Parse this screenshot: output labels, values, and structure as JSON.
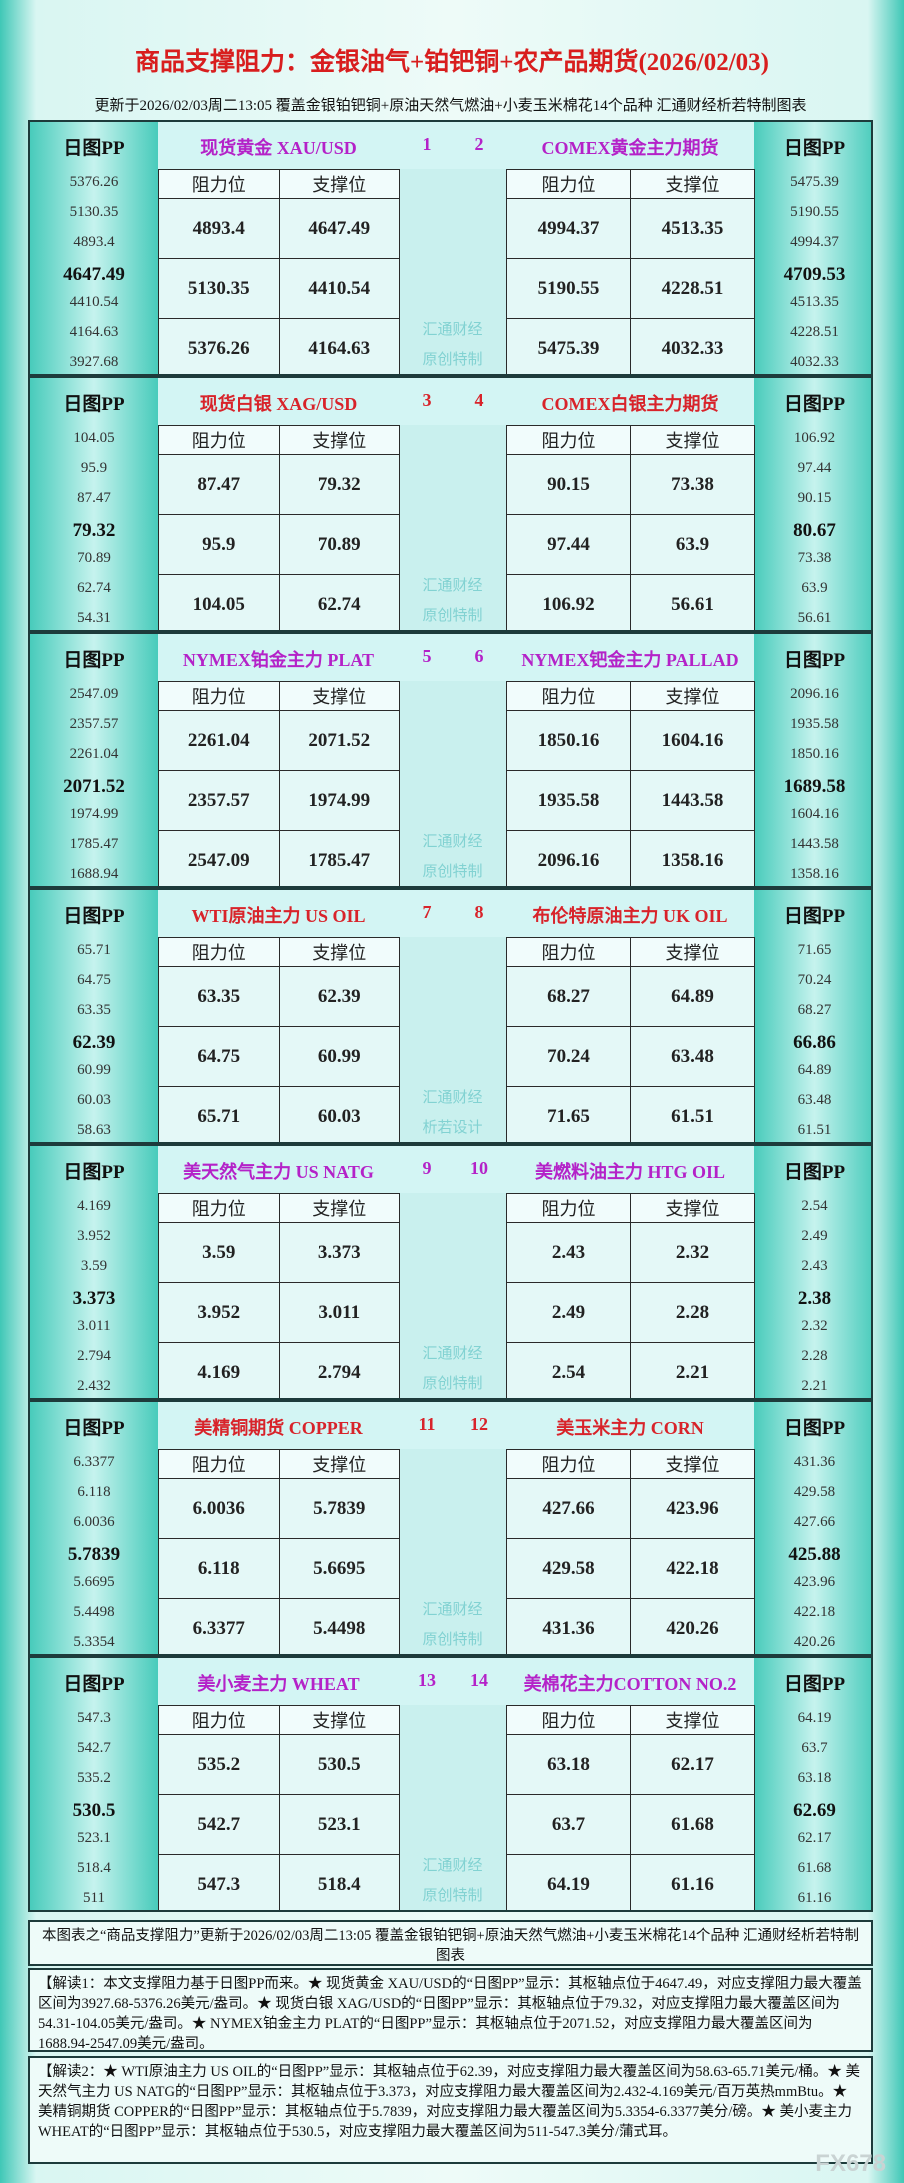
{
  "header": {
    "title": "商品支撑阻力：金银油气+铂钯铜+农产品期货(2026/02/03)",
    "subtitle": "更新于2026/02/03周二13:05 覆盖金银铂钯铜+原油天然气燃油+小麦玉米棉花14个品种 汇通财经析若特制图表"
  },
  "blocks": [
    {
      "watermark": [
        "汇通财经",
        "原创特制"
      ],
      "left": {
        "pp_label": "日图PP",
        "name": "现货黄金 XAU/USD",
        "number": 1,
        "color": "#b422c8",
        "levels": [
          5376.26,
          5130.35,
          4893.4,
          4647.49,
          4410.54,
          4164.63,
          3927.68
        ],
        "headers": [
          "阻力位",
          "支撑位"
        ],
        "rows": [
          [
            4893.4,
            4647.49
          ],
          [
            5130.35,
            4410.54
          ],
          [
            5376.26,
            4164.63
          ]
        ]
      },
      "right": {
        "pp_label": "日图PP",
        "name": "COMEX黄金主力期货",
        "number": 2,
        "color": "#b422c8",
        "levels": [
          5475.39,
          5190.55,
          4994.37,
          4709.53,
          4513.35,
          4228.51,
          4032.33
        ],
        "headers": [
          "阻力位",
          "支撑位"
        ],
        "rows": [
          [
            4994.37,
            4513.35
          ],
          [
            5190.55,
            4228.51
          ],
          [
            5475.39,
            4032.33
          ]
        ]
      }
    },
    {
      "watermark": [
        "汇通财经",
        "原创特制"
      ],
      "left": {
        "pp_label": "日图PP",
        "name": "现货白银 XAG/USD",
        "number": 3,
        "color": "#d8232a",
        "levels": [
          104.05,
          95.9,
          87.47,
          79.32,
          70.89,
          62.74,
          54.31
        ],
        "headers": [
          "阻力位",
          "支撑位"
        ],
        "rows": [
          [
            87.47,
            79.32
          ],
          [
            95.9,
            70.89
          ],
          [
            104.05,
            62.74
          ]
        ]
      },
      "right": {
        "pp_label": "日图PP",
        "name": "COMEX白银主力期货",
        "number": 4,
        "color": "#d8232a",
        "levels": [
          106.92,
          97.44,
          90.15,
          80.67,
          73.38,
          63.9,
          56.61
        ],
        "headers": [
          "阻力位",
          "支撑位"
        ],
        "rows": [
          [
            90.15,
            73.38
          ],
          [
            97.44,
            63.9
          ],
          [
            106.92,
            56.61
          ]
        ]
      }
    },
    {
      "watermark": [
        "汇通财经",
        "原创特制"
      ],
      "left": {
        "pp_label": "日图PP",
        "name": "NYMEX铂金主力 PLAT",
        "number": 5,
        "color": "#b422c8",
        "levels": [
          2547.09,
          2357.57,
          2261.04,
          2071.52,
          1974.99,
          1785.47,
          1688.94
        ],
        "headers": [
          "阻力位",
          "支撑位"
        ],
        "rows": [
          [
            2261.04,
            2071.52
          ],
          [
            2357.57,
            1974.99
          ],
          [
            2547.09,
            1785.47
          ]
        ]
      },
      "right": {
        "pp_label": "日图PP",
        "name": "NYMEX钯金主力 PALLAD",
        "number": 6,
        "color": "#b422c8",
        "levels": [
          2096.16,
          1935.58,
          1850.16,
          1689.58,
          1604.16,
          1443.58,
          1358.16
        ],
        "headers": [
          "阻力位",
          "支撑位"
        ],
        "rows": [
          [
            1850.16,
            1604.16
          ],
          [
            1935.58,
            1443.58
          ],
          [
            2096.16,
            1358.16
          ]
        ]
      }
    },
    {
      "watermark": [
        "汇通财经",
        "析若设计"
      ],
      "left": {
        "pp_label": "日图PP",
        "name": "WTI原油主力 US OIL",
        "number": 7,
        "color": "#d8232a",
        "levels": [
          65.71,
          64.75,
          63.35,
          62.39,
          60.99,
          60.03,
          58.63
        ],
        "headers": [
          "阻力位",
          "支撑位"
        ],
        "rows": [
          [
            63.35,
            62.39
          ],
          [
            64.75,
            60.99
          ],
          [
            65.71,
            60.03
          ]
        ]
      },
      "right": {
        "pp_label": "日图PP",
        "name": "布伦特原油主力 UK OIL",
        "number": 8,
        "color": "#d8232a",
        "levels": [
          71.65,
          70.24,
          68.27,
          66.86,
          64.89,
          63.48,
          61.51
        ],
        "headers": [
          "阻力位",
          "支撑位"
        ],
        "rows": [
          [
            68.27,
            64.89
          ],
          [
            70.24,
            63.48
          ],
          [
            71.65,
            61.51
          ]
        ]
      }
    },
    {
      "watermark": [
        "汇通财经",
        "原创特制"
      ],
      "left": {
        "pp_label": "日图PP",
        "name": "美天然气主力 US NATG",
        "number": 9,
        "color": "#b422c8",
        "levels": [
          4.169,
          3.952,
          3.59,
          3.373,
          3.011,
          2.794,
          2.432
        ],
        "headers": [
          "阻力位",
          "支撑位"
        ],
        "rows": [
          [
            3.59,
            3.373
          ],
          [
            3.952,
            3.011
          ],
          [
            4.169,
            2.794
          ]
        ]
      },
      "right": {
        "pp_label": "日图PP",
        "name": "美燃料油主力 HTG OIL",
        "number": 10,
        "color": "#b422c8",
        "levels": [
          2.54,
          2.49,
          2.43,
          2.38,
          2.32,
          2.28,
          2.21
        ],
        "headers": [
          "阻力位",
          "支撑位"
        ],
        "rows": [
          [
            2.43,
            2.32
          ],
          [
            2.49,
            2.28
          ],
          [
            2.54,
            2.21
          ]
        ]
      }
    },
    {
      "watermark": [
        "汇通财经",
        "原创特制"
      ],
      "left": {
        "pp_label": "日图PP",
        "name": "美精铜期货 COPPER",
        "number": 11,
        "color": "#d8232a",
        "levels": [
          6.3377,
          6.118,
          6.0036,
          5.7839,
          5.6695,
          5.4498,
          5.3354
        ],
        "headers": [
          "阻力位",
          "支撑位"
        ],
        "rows": [
          [
            6.0036,
            5.7839
          ],
          [
            6.118,
            5.6695
          ],
          [
            6.3377,
            5.4498
          ]
        ]
      },
      "right": {
        "pp_label": "日图PP",
        "name": "美玉米主力 CORN",
        "number": 12,
        "color": "#d8232a",
        "levels": [
          431.36,
          429.58,
          427.66,
          425.88,
          423.96,
          422.18,
          420.26
        ],
        "headers": [
          "阻力位",
          "支撑位"
        ],
        "rows": [
          [
            427.66,
            423.96
          ],
          [
            429.58,
            422.18
          ],
          [
            431.36,
            420.26
          ]
        ]
      }
    },
    {
      "watermark": [
        "汇通财经",
        "原创特制"
      ],
      "left": {
        "pp_label": "日图PP",
        "name": "美小麦主力 WHEAT",
        "number": 13,
        "color": "#b422c8",
        "levels": [
          547.3,
          542.7,
          535.2,
          530.5,
          523.1,
          518.4,
          511
        ],
        "headers": [
          "阻力位",
          "支撑位"
        ],
        "rows": [
          [
            535.2,
            530.5
          ],
          [
            542.7,
            523.1
          ],
          [
            547.3,
            518.4
          ]
        ]
      },
      "right": {
        "pp_label": "日图PP",
        "name": "美棉花主力COTTON NO.2",
        "number": 14,
        "color": "#b422c8",
        "levels": [
          64.19,
          63.7,
          63.18,
          62.69,
          62.17,
          61.68,
          61.16
        ],
        "headers": [
          "阻力位",
          "支撑位"
        ],
        "rows": [
          [
            63.18,
            62.17
          ],
          [
            63.7,
            61.68
          ],
          [
            64.19,
            61.16
          ]
        ]
      }
    }
  ],
  "footer": {
    "note": "本图表之“商品支撑阻力”更新于2026/02/03周二13:05 覆盖金银铂钯铜+原油天然气燃油+小麦玉米棉花14个品种 汇通财经析若特制图表",
    "analysis": [
      "【解读1：本文支撑阻力基于日图PP而来。★ 现货黄金 XAU/USD的“日图PP”显示：其枢轴点位于4647.49，对应支撑阻力最大覆盖区间为3927.68-5376.26美元/盎司。★ 现货白银 XAG/USD的“日图PP”显示：其枢轴点位于79.32，对应支撑阻力最大覆盖区间为54.31-104.05美元/盎司。★ NYMEX铂金主力 PLAT的“日图PP”显示：其枢轴点位于2071.52，对应支撑阻力最大覆盖区间为1688.94-2547.09美元/盎司。",
      "【解读2：★ WTI原油主力 US OIL的“日图PP”显示：其枢轴点位于62.39，对应支撑阻力最大覆盖区间为58.63-65.71美元/桶。★ 美天然气主力 US NATG的“日图PP”显示：其枢轴点位于3.373，对应支撑阻力最大覆盖区间为2.432-4.169美元/百万英热mmBtu。★ 美精铜期货 COPPER的“日图PP”显示：其枢轴点位于5.7839，对应支撑阻力最大覆盖区间为5.3354-6.3377美分/磅。★ 美小麦主力 WHEAT的“日图PP”显示：其枢轴点位于530.5，对应支撑阻力最大覆盖区间为511-547.3美分/蒲式耳。"
    ],
    "logo": "FX678"
  }
}
